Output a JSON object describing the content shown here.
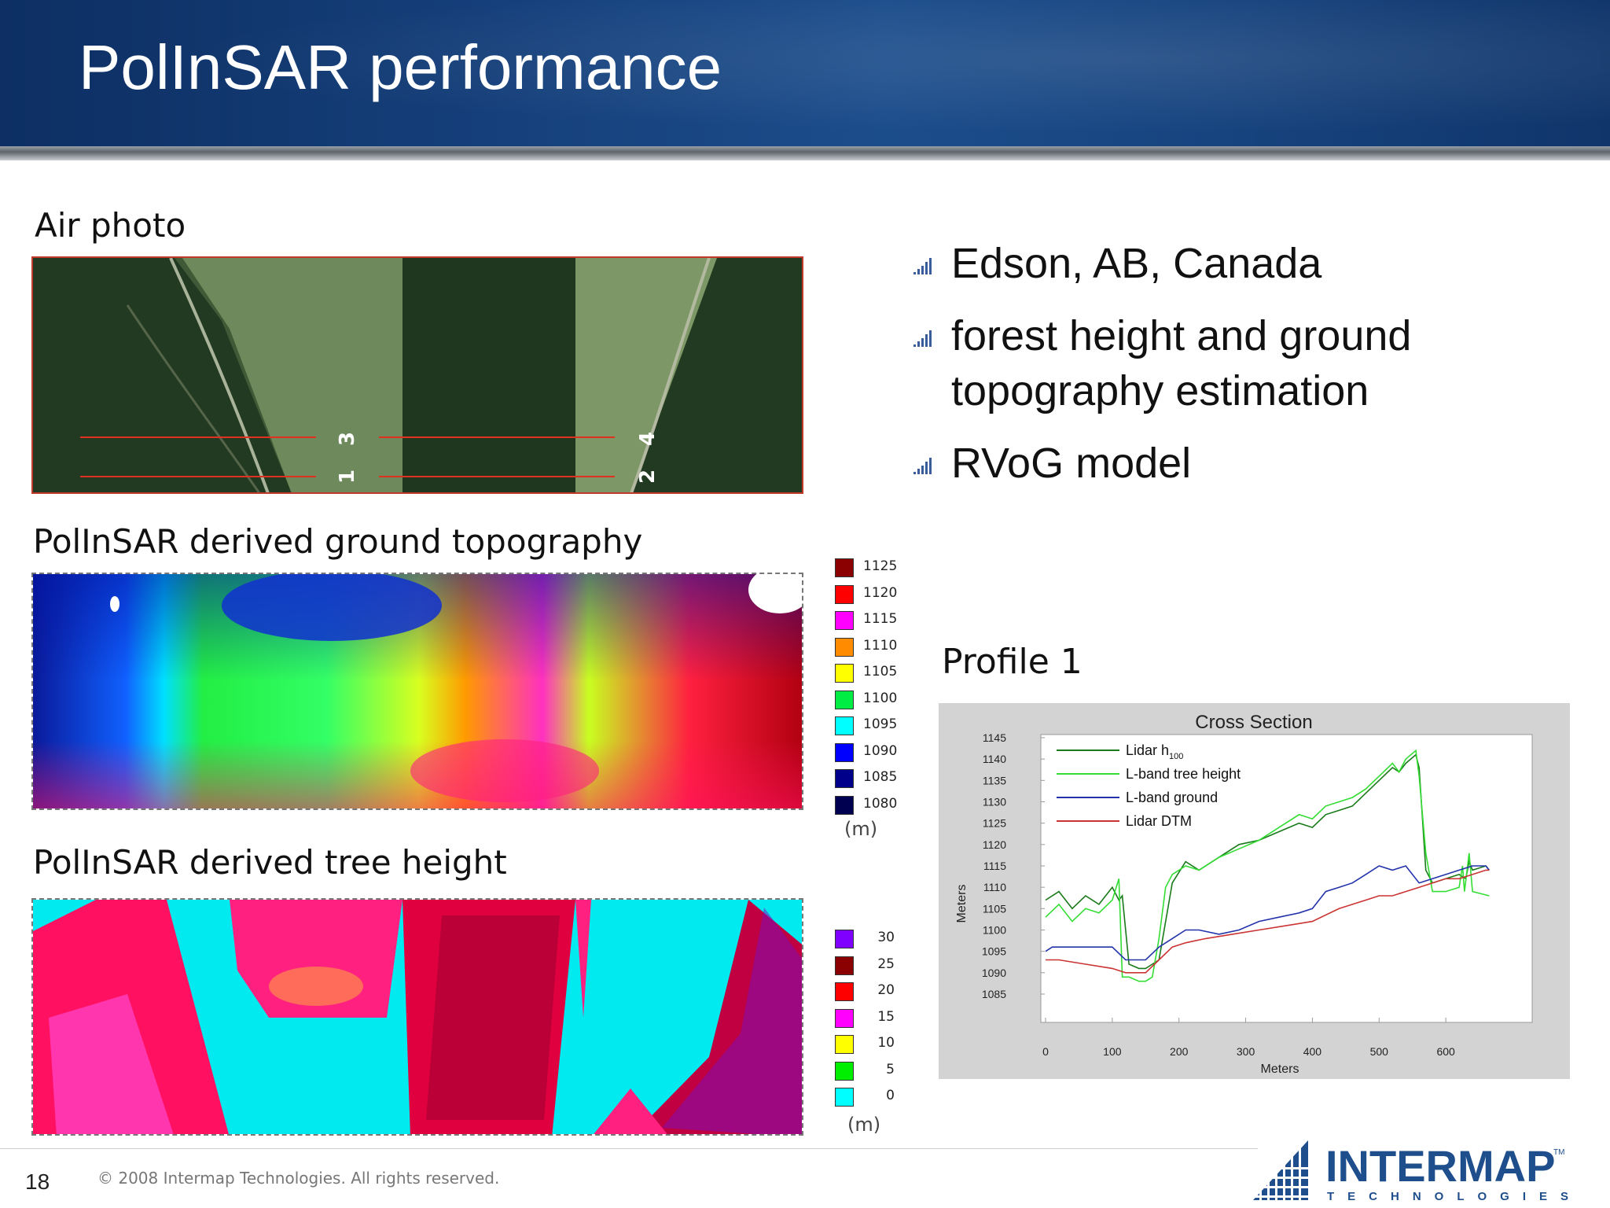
{
  "slide": {
    "title": "PolInSAR performance",
    "page_number": "18",
    "copyright": "© 2008 Intermap Technologies. All rights reserved."
  },
  "panels": {
    "air_photo": {
      "label": "Air photo",
      "track_labels": [
        "3",
        "1",
        "4",
        "2"
      ]
    },
    "topography": {
      "label": "PolInSAR derived ground topography"
    },
    "tree_height": {
      "label": "PolInSAR derived tree height"
    }
  },
  "bullets": [
    {
      "text": "Edson, AB, Canada"
    },
    {
      "text": "forest height and ground topography estimation"
    },
    {
      "text": "RVoG model"
    }
  ],
  "topo_legend": {
    "unit": "(m)",
    "items": [
      {
        "value": "1125",
        "color": "#8b0000"
      },
      {
        "value": "1120",
        "color": "#ff0000"
      },
      {
        "value": "1115",
        "color": "#ff00ff"
      },
      {
        "value": "1110",
        "color": "#ff8c00"
      },
      {
        "value": "1105",
        "color": "#ffff00"
      },
      {
        "value": "1100",
        "color": "#00ee44"
      },
      {
        "value": "1095",
        "color": "#00ffff"
      },
      {
        "value": "1090",
        "color": "#0000ff"
      },
      {
        "value": "1085",
        "color": "#00008b"
      },
      {
        "value": "1080",
        "color": "#000050"
      }
    ]
  },
  "tree_legend": {
    "unit": "(m)",
    "items": [
      {
        "value": "30",
        "color": "#8000ff"
      },
      {
        "value": "25",
        "color": "#8b0000"
      },
      {
        "value": "20",
        "color": "#ff0000"
      },
      {
        "value": "15",
        "color": "#ff00ff"
      },
      {
        "value": "10",
        "color": "#ffff00"
      },
      {
        "value": "5",
        "color": "#00ee00"
      },
      {
        "value": "0",
        "color": "#00ffff"
      }
    ]
  },
  "profile": {
    "label": "Profile 1"
  },
  "chart_data": {
    "type": "line",
    "title": "Cross Section",
    "xlabel": "Meters",
    "ylabel": "Meters",
    "xlim": [
      0,
      700
    ],
    "ylim": [
      1085,
      1145
    ],
    "x_ticks": [
      0,
      100,
      200,
      300,
      400,
      500,
      600
    ],
    "y_ticks": [
      1145,
      1140,
      1135,
      1130,
      1125,
      1120,
      1115,
      1110,
      1105,
      1100,
      1095,
      1090,
      1085
    ],
    "grid": false,
    "legend_position": "top-left",
    "series": [
      {
        "name": "Lidar h100",
        "legend_main": "Lidar h",
        "legend_sub": "100",
        "color": "#1a7a1a",
        "x": [
          0,
          20,
          40,
          60,
          80,
          100,
          110,
          115,
          125,
          140,
          150,
          160,
          170,
          190,
          210,
          230,
          260,
          290,
          320,
          350,
          380,
          400,
          420,
          440,
          460,
          480,
          500,
          520,
          530,
          540,
          555,
          560,
          570,
          580,
          600,
          620,
          630,
          635,
          640,
          660,
          665
        ],
        "y": [
          1107,
          1109,
          1105,
          1108,
          1106,
          1110,
          1107,
          1108,
          1092,
          1091,
          1091,
          1092,
          1093,
          1111,
          1116,
          1114,
          1117,
          1120,
          1121,
          1123,
          1125,
          1124,
          1127,
          1128,
          1129,
          1132,
          1135,
          1138,
          1137,
          1139,
          1141,
          1138,
          1114,
          1111,
          1112,
          1113,
          1112,
          1116,
          1114,
          1115,
          1114
        ]
      },
      {
        "name": "L-band tree height",
        "legend_main": "L-band tree height",
        "legend_sub": "",
        "color": "#33dd33",
        "x": [
          0,
          20,
          40,
          60,
          80,
          100,
          110,
          115,
          125,
          140,
          150,
          160,
          170,
          180,
          190,
          210,
          230,
          260,
          290,
          320,
          350,
          380,
          400,
          420,
          440,
          460,
          480,
          500,
          520,
          530,
          540,
          555,
          560,
          570,
          580,
          600,
          620,
          625,
          628,
          635,
          640,
          665
        ],
        "y": [
          1103,
          1106,
          1102,
          1105,
          1104,
          1107,
          1112,
          1089,
          1089,
          1088,
          1088,
          1089,
          1098,
          1110,
          1113,
          1115,
          1114,
          1117,
          1119,
          1121,
          1124,
          1127,
          1126,
          1129,
          1130,
          1131,
          1133,
          1136,
          1139,
          1137,
          1140,
          1142,
          1136,
          1118,
          1109,
          1109,
          1110,
          1115,
          1109,
          1118,
          1109,
          1108
        ]
      },
      {
        "name": "L-band ground",
        "legend_main": "L-band ground",
        "legend_sub": "",
        "color": "#2233aa",
        "x": [
          0,
          10,
          60,
          100,
          120,
          150,
          170,
          190,
          210,
          230,
          260,
          290,
          320,
          350,
          380,
          400,
          420,
          440,
          460,
          480,
          500,
          520,
          540,
          560,
          580,
          600,
          620,
          640,
          660,
          665
        ],
        "y": [
          1095,
          1096,
          1096,
          1096,
          1093,
          1093,
          1096,
          1098,
          1100,
          1100,
          1099,
          1100,
          1102,
          1103,
          1104,
          1105,
          1109,
          1110,
          1111,
          1113,
          1115,
          1114,
          1115,
          1111,
          1112,
          1113,
          1114,
          1115,
          1115,
          1114
        ]
      },
      {
        "name": "Lidar DTM",
        "legend_main": "Lidar DTM",
        "legend_sub": "",
        "color": "#cc3333",
        "x": [
          0,
          20,
          60,
          100,
          120,
          150,
          170,
          190,
          210,
          240,
          280,
          320,
          360,
          400,
          440,
          480,
          500,
          520,
          540,
          560,
          580,
          600,
          620,
          640,
          660,
          665
        ],
        "y": [
          1093,
          1093,
          1092,
          1091,
          1090,
          1090,
          1093,
          1096,
          1097,
          1098,
          1099,
          1100,
          1101,
          1102,
          1105,
          1107,
          1108,
          1108,
          1109,
          1110,
          1111,
          1112,
          1112,
          1113,
          1114,
          1114
        ]
      }
    ]
  }
}
